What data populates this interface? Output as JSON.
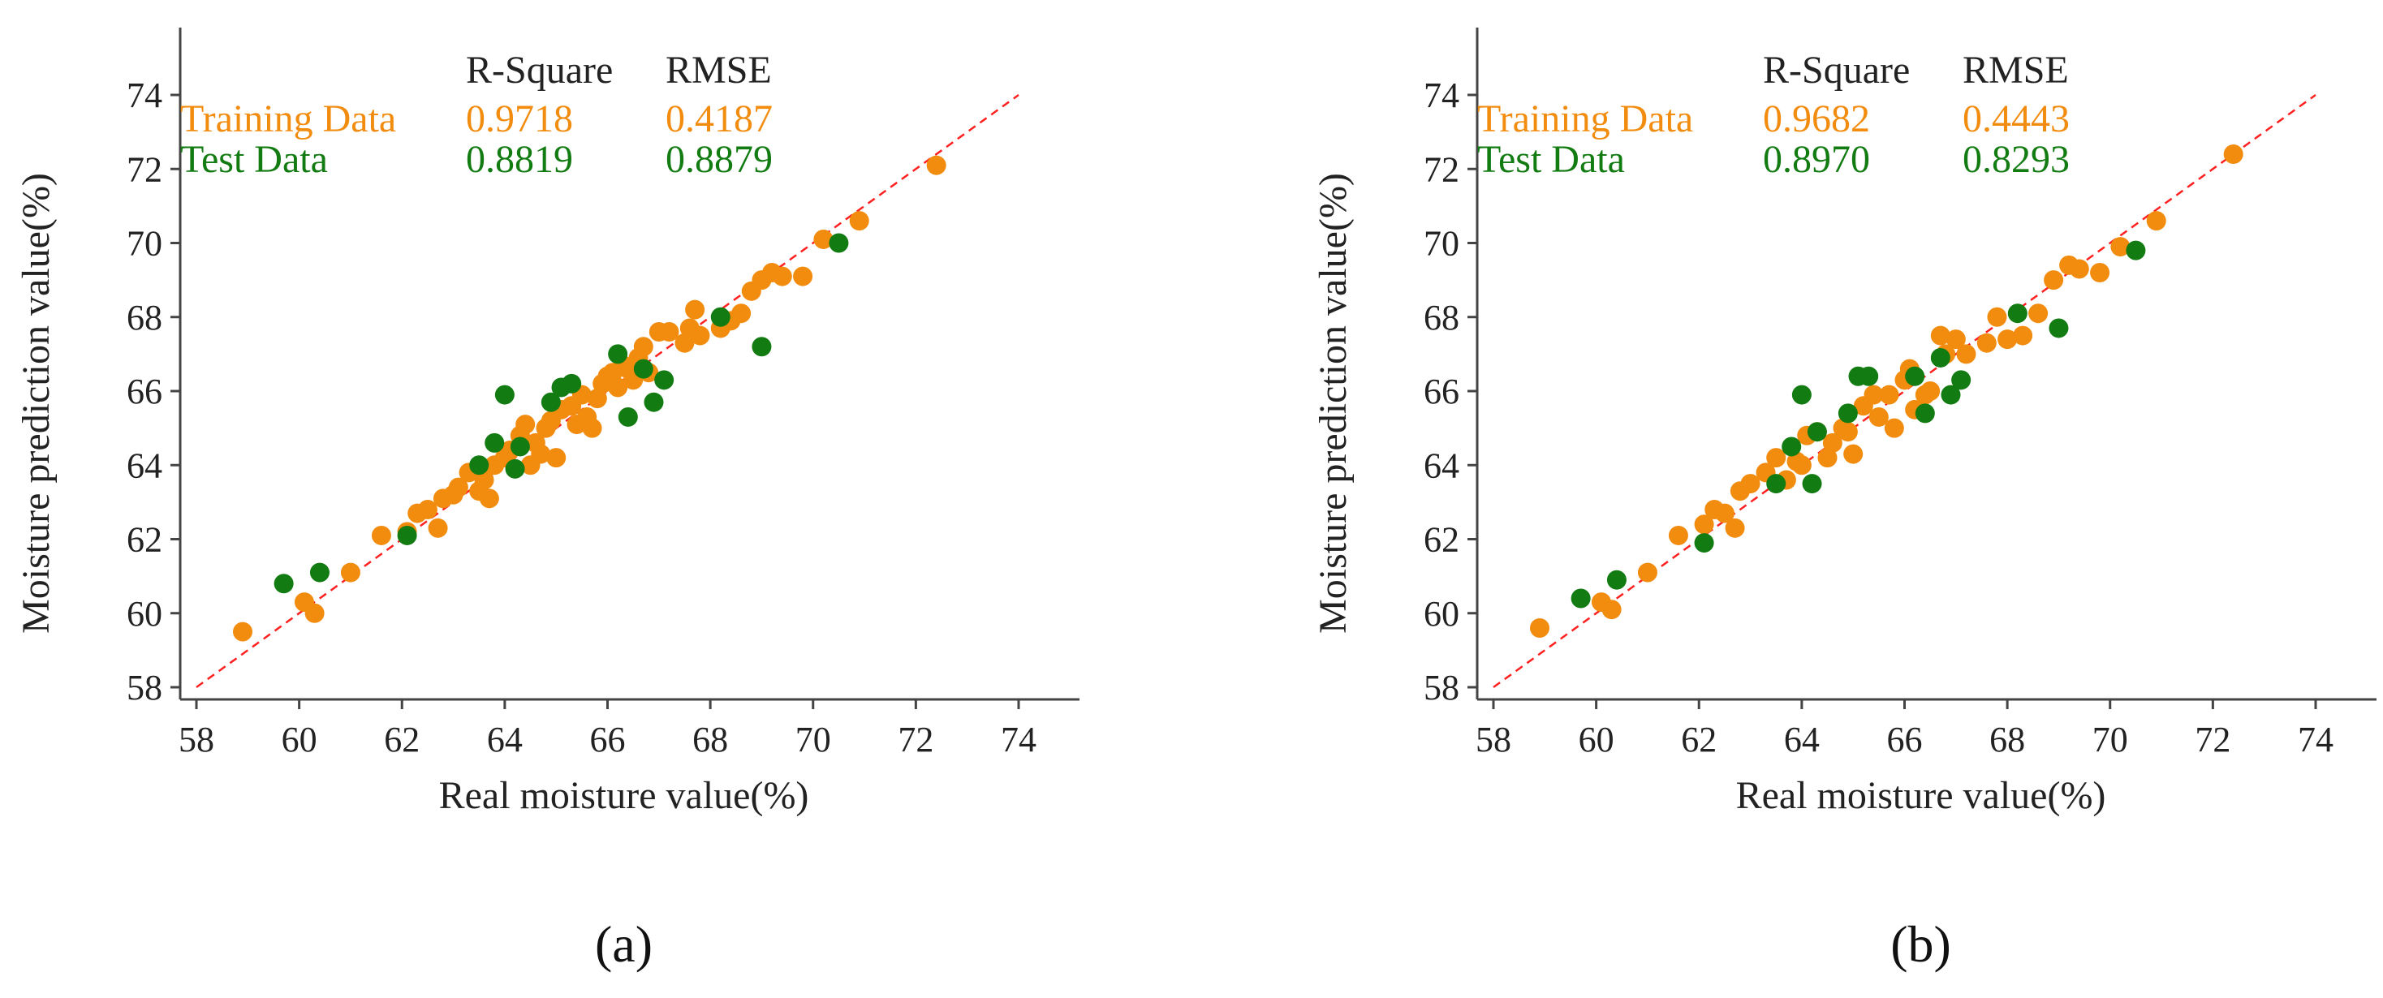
{
  "colors": {
    "training": "#f28c0f",
    "test": "#127b12",
    "ideal_line": "#ff2020",
    "axis": "#444444"
  },
  "chart_data": [
    {
      "type": "scatter",
      "panel_label": "(a)",
      "xlabel": "Real moisture value(%)",
      "ylabel": "Moisture prediction value(%)",
      "xlim": [
        58,
        74
      ],
      "ylim": [
        58,
        74
      ],
      "xticks": [
        "58",
        "60",
        "62",
        "64",
        "66",
        "68",
        "70",
        "72",
        "74"
      ],
      "yticks": [
        "58",
        "60",
        "62",
        "64",
        "66",
        "68",
        "70",
        "72",
        "74"
      ],
      "grid": false,
      "ideal_line": {
        "style": "dashed",
        "from": [
          58,
          58
        ],
        "to": [
          74,
          74
        ]
      },
      "metrics": {
        "headers": [
          "R-Square",
          "RMSE"
        ],
        "rows": [
          {
            "label": "Training Data",
            "r_square": "0.9718",
            "rmse": "0.4187"
          },
          {
            "label": "Test Data",
            "r_square": "0.8819",
            "rmse": "0.8879"
          }
        ]
      },
      "series": [
        {
          "name": "Training Data",
          "x": [
            58.9,
            60.1,
            60.3,
            61.0,
            61.6,
            62.1,
            62.3,
            62.5,
            62.7,
            62.8,
            63.0,
            63.1,
            63.3,
            63.5,
            63.6,
            63.7,
            63.8,
            64.0,
            64.1,
            64.3,
            64.4,
            64.5,
            64.6,
            64.7,
            64.8,
            64.9,
            65.0,
            65.1,
            65.3,
            65.4,
            65.5,
            65.6,
            65.7,
            65.8,
            65.9,
            66.0,
            66.1,
            66.2,
            66.3,
            66.4,
            66.5,
            66.6,
            66.7,
            66.8,
            67.0,
            67.2,
            67.5,
            67.6,
            67.7,
            67.8,
            68.2,
            68.4,
            68.6,
            68.8,
            69.0,
            69.2,
            69.4,
            69.8,
            70.2,
            70.9,
            72.4
          ],
          "y": [
            59.5,
            60.3,
            60.0,
            61.1,
            62.1,
            62.2,
            62.7,
            62.8,
            62.3,
            63.1,
            63.2,
            63.4,
            63.8,
            63.3,
            63.6,
            63.1,
            64.0,
            64.2,
            64.4,
            64.8,
            65.1,
            64.0,
            64.6,
            64.3,
            65.0,
            65.2,
            64.2,
            65.5,
            65.6,
            65.1,
            65.9,
            65.3,
            65.0,
            65.8,
            66.2,
            66.4,
            66.5,
            66.1,
            66.7,
            66.6,
            66.3,
            66.9,
            67.2,
            66.5,
            67.6,
            67.6,
            67.3,
            67.7,
            68.2,
            67.5,
            67.7,
            67.9,
            68.1,
            68.7,
            69.0,
            69.2,
            69.1,
            69.1,
            70.1,
            70.6,
            72.1
          ]
        },
        {
          "name": "Test Data",
          "x": [
            59.7,
            60.4,
            62.1,
            63.5,
            63.8,
            64.0,
            64.2,
            64.3,
            64.9,
            65.1,
            65.3,
            66.2,
            66.4,
            66.7,
            66.9,
            67.1,
            68.2,
            69.0,
            70.5
          ],
          "y": [
            60.8,
            61.1,
            62.1,
            64.0,
            64.6,
            65.9,
            63.9,
            64.5,
            65.7,
            66.1,
            66.2,
            67.0,
            65.3,
            66.6,
            65.7,
            66.3,
            68.0,
            67.2,
            70.0
          ]
        }
      ]
    },
    {
      "type": "scatter",
      "panel_label": "(b)",
      "xlabel": "Real moisture value(%)",
      "ylabel": "Moisture prediction value(%)",
      "xlim": [
        58,
        74
      ],
      "ylim": [
        58,
        74
      ],
      "xticks": [
        "58",
        "60",
        "62",
        "64",
        "66",
        "68",
        "70",
        "72",
        "74"
      ],
      "yticks": [
        "58",
        "60",
        "62",
        "64",
        "66",
        "68",
        "70",
        "72",
        "74"
      ],
      "grid": false,
      "ideal_line": {
        "style": "dashed",
        "from": [
          58,
          58
        ],
        "to": [
          74,
          74
        ]
      },
      "metrics": {
        "headers": [
          "R-Square",
          "RMSE"
        ],
        "rows": [
          {
            "label": "Training Data",
            "r_square": "0.9682",
            "rmse": "0.4443"
          },
          {
            "label": "Test Data",
            "r_square": "0.8970",
            "rmse": "0.8293"
          }
        ]
      },
      "series": [
        {
          "name": "Training Data",
          "x": [
            58.9,
            60.1,
            60.3,
            61.0,
            61.6,
            62.1,
            62.3,
            62.5,
            62.7,
            62.8,
            63.0,
            63.3,
            63.5,
            63.7,
            63.9,
            64.0,
            64.1,
            64.3,
            64.5,
            64.6,
            64.8,
            64.9,
            65.0,
            65.2,
            65.4,
            65.5,
            65.7,
            65.8,
            66.0,
            66.1,
            66.2,
            66.4,
            66.5,
            66.7,
            66.8,
            67.0,
            67.2,
            67.6,
            67.8,
            68.0,
            68.3,
            68.6,
            68.9,
            69.2,
            69.4,
            69.8,
            70.2,
            70.9,
            72.4
          ],
          "y": [
            59.6,
            60.3,
            60.1,
            61.1,
            62.1,
            62.4,
            62.8,
            62.7,
            62.3,
            63.3,
            63.5,
            63.8,
            64.2,
            63.6,
            64.1,
            64.0,
            64.8,
            64.9,
            64.2,
            64.6,
            65.0,
            64.9,
            64.3,
            65.6,
            65.9,
            65.3,
            65.9,
            65.0,
            66.3,
            66.6,
            65.5,
            65.9,
            66.0,
            67.5,
            67.0,
            67.4,
            67.0,
            67.3,
            68.0,
            67.4,
            67.5,
            68.1,
            69.0,
            69.4,
            69.3,
            69.2,
            69.9,
            70.6,
            72.4
          ]
        },
        {
          "name": "Test Data",
          "x": [
            59.7,
            60.4,
            62.1,
            63.5,
            63.8,
            64.0,
            64.2,
            64.3,
            64.9,
            65.1,
            65.3,
            66.2,
            66.4,
            66.7,
            66.9,
            67.1,
            68.2,
            69.0,
            70.5
          ],
          "y": [
            60.4,
            60.9,
            61.9,
            63.5,
            64.5,
            65.9,
            63.5,
            64.9,
            65.4,
            66.4,
            66.4,
            66.4,
            65.4,
            66.9,
            65.9,
            66.3,
            68.1,
            67.7,
            69.8
          ]
        }
      ]
    }
  ]
}
